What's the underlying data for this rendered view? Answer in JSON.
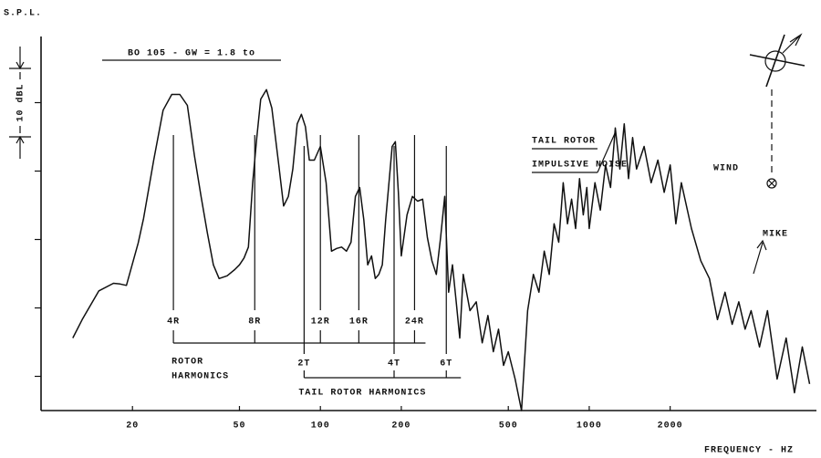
{
  "chart_data": {
    "type": "line",
    "title": "BO 105 - GW = 1.8 to",
    "y_label": "S.P.L.",
    "x_label": "FREQUENCY - HZ",
    "x_scale": "log",
    "xlim": [
      9,
      7000
    ],
    "ylim": [
      -5,
      49
    ],
    "xticks": [
      20,
      50,
      100,
      200,
      500,
      1000,
      2000
    ],
    "yticks": [
      0,
      10,
      20,
      30,
      40
    ],
    "x": [
      12,
      13,
      15,
      17,
      18,
      19,
      21,
      22,
      24,
      26,
      28,
      30,
      32,
      34,
      36,
      38,
      40,
      42,
      45,
      48,
      50,
      52,
      54,
      56,
      58,
      60,
      63,
      66,
      70,
      73,
      76,
      79,
      82,
      85,
      88,
      91,
      95,
      100,
      105,
      110,
      115,
      120,
      125,
      130,
      135,
      140,
      145,
      150,
      155,
      160,
      165,
      170,
      175,
      180,
      185,
      190,
      195,
      200,
      210,
      220,
      230,
      240,
      250,
      260,
      270,
      280,
      290,
      300,
      310,
      320,
      330,
      340,
      360,
      380,
      400,
      420,
      440,
      460,
      480,
      500,
      530,
      560,
      590,
      620,
      650,
      680,
      710,
      740,
      770,
      800,
      830,
      860,
      890,
      920,
      950,
      980,
      1000,
      1050,
      1100,
      1150,
      1200,
      1250,
      1300,
      1350,
      1400,
      1450,
      1500,
      1600,
      1700,
      1800,
      1900,
      2000,
      2100,
      2200,
      2400,
      2600,
      2800,
      3000,
      3200,
      3400,
      3600,
      3800,
      4000,
      4300,
      4600,
      5000,
      5400,
      5800,
      6200,
      6600
    ],
    "series": [
      {
        "color": "#111111",
        "values": [
          5.6,
          8.3,
          12.5,
          13.6,
          13.5,
          13.3,
          19.5,
          23.1,
          31.6,
          38.9,
          41.2,
          41.2,
          39.6,
          32.3,
          26.3,
          20.9,
          16.3,
          14.3,
          14.7,
          15.6,
          16.3,
          17.3,
          18.9,
          28.3,
          34.9,
          40.5,
          41.9,
          39.2,
          30.9,
          24.9,
          26.3,
          30.3,
          36.9,
          38.3,
          36.5,
          31.6,
          31.6,
          33.6,
          28.3,
          18.3,
          18.7,
          18.9,
          18.3,
          19.6,
          26.3,
          27.6,
          22.9,
          16.3,
          17.6,
          14.3,
          14.9,
          16.3,
          22.9,
          28.3,
          33.6,
          34.3,
          26.9,
          17.6,
          23.6,
          26.3,
          25.6,
          25.9,
          20.3,
          16.9,
          14.9,
          20.3,
          26.3,
          12.3,
          16.3,
          10.9,
          5.6,
          14.9,
          9.6,
          10.9,
          4.9,
          8.9,
          3.6,
          6.9,
          1.6,
          3.6,
          -0.4,
          -5,
          9.6,
          14.9,
          12.3,
          18.3,
          14.9,
          22.3,
          19.6,
          28.3,
          22.3,
          25.9,
          21.6,
          28.9,
          23.6,
          27.6,
          21.6,
          28.3,
          24.3,
          30.9,
          27.6,
          36.3,
          30.3,
          36.9,
          28.9,
          34.9,
          30.3,
          33.6,
          28.3,
          31.6,
          26.9,
          30.9,
          22.3,
          28.3,
          21.6,
          16.9,
          14.3,
          8.3,
          12.3,
          7.6,
          10.9,
          6.9,
          9.6,
          4.3,
          9.6,
          -0.4,
          5.6,
          -2.4,
          4.3,
          -1.1
        ]
      }
    ],
    "scale_bar": {
      "label": "10 dBL",
      "value": 10
    },
    "annotations": [
      "TAIL ROTOR",
      "IMPULSIVE NOISE",
      "WIND",
      "MIKE"
    ],
    "rotor_harmonics": {
      "label": [
        "ROTOR",
        "HARMONICS"
      ],
      "markers": [
        {
          "label": "4R",
          "x": 28.4
        },
        {
          "label": "8R",
          "x": 57
        },
        {
          "label": "12R",
          "x": 100
        },
        {
          "label": "16R",
          "x": 139
        },
        {
          "label": "24R",
          "x": 224
        }
      ]
    },
    "tail_rotor_harmonics": {
      "label": "TAIL ROTOR HARMONICS",
      "markers": [
        {
          "label": "2T",
          "x": 87
        },
        {
          "label": "4T",
          "x": 188
        },
        {
          "label": "6T",
          "x": 294
        }
      ]
    }
  }
}
